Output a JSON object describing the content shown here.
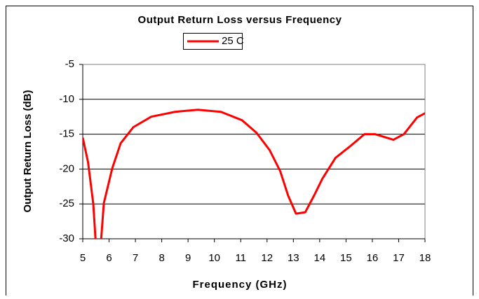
{
  "chart_data": {
    "type": "line",
    "title": "Output Return Loss versus Frequency",
    "x_label": "Frequency (GHz)",
    "y_label": "Output Return Loss (dB)",
    "x": [
      5,
      5.2,
      5.4,
      5.5,
      5.6,
      5.7,
      5.8,
      6.12,
      6.44,
      6.92,
      7.6,
      8.5,
      9.37,
      10.25,
      11.05,
      11.6,
      12.1,
      12.5,
      12.8,
      13.1,
      13.45,
      13.8,
      14.1,
      14.6,
      15.2,
      15.7,
      16.1,
      16.8,
      17.2,
      17.7,
      18
    ],
    "series": [
      {
        "name": "25 C",
        "color": "#ff0000",
        "values": [
          -15.5,
          -19,
          -25,
          -31,
          -32,
          -30,
          -24.9,
          -19.9,
          -16.3,
          -14,
          -12.5,
          -11.8,
          -11.5,
          -11.8,
          -13,
          -14.8,
          -17.3,
          -20.3,
          -23.8,
          -26.4,
          -26.2,
          -23.7,
          -21.4,
          -18.4,
          -16.6,
          -15,
          -15,
          -15.8,
          -15,
          -12.6,
          -12
        ]
      }
    ],
    "xlim": [
      5,
      18
    ],
    "xticks": [
      5,
      6,
      7,
      8,
      9,
      10,
      11,
      12,
      13,
      14,
      15,
      16,
      17,
      18
    ],
    "ylim": [
      -30,
      -5
    ],
    "yticks": [
      -30,
      -25,
      -20,
      -15,
      -10,
      -5
    ],
    "grid": true,
    "legend": "top"
  }
}
